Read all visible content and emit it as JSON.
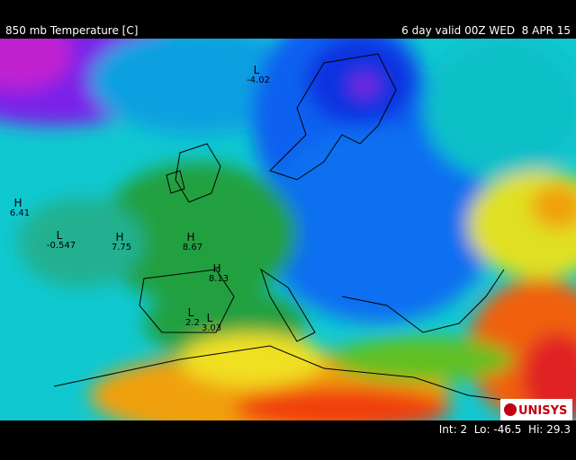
{
  "header": {
    "title": "850 mb Temperature [C]",
    "valid": "6 day valid 00Z WED  8 APR 15"
  },
  "centers": [
    {
      "symbol": "L",
      "value": "-4.02"
    },
    {
      "symbol": "H",
      "value": "6.41"
    },
    {
      "symbol": "L",
      "value": "-0.547"
    },
    {
      "symbol": "H",
      "value": "7.75"
    },
    {
      "symbol": "H",
      "value": "8.67"
    },
    {
      "symbol": "H",
      "value": "8.13"
    },
    {
      "symbol": "L",
      "value": "2.2"
    },
    {
      "symbol": "L",
      "value": "3.03"
    }
  ],
  "footer": {
    "stats": "Int: 2  Lo: -46.5  Hi: 29.3",
    "logo": "UNISYS"
  }
}
